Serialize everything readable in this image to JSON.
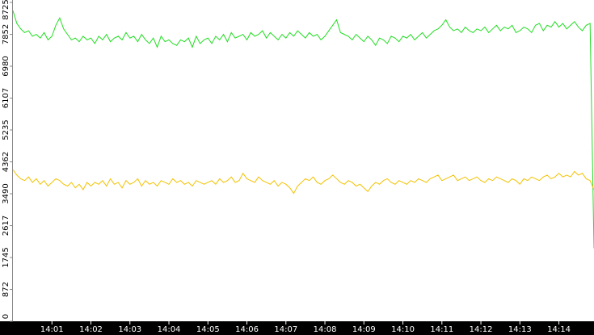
{
  "chart_data": {
    "type": "line",
    "categories": [
      null,
      null,
      null,
      null,
      null,
      null,
      null,
      null,
      null,
      null,
      "14:01",
      null,
      null,
      null,
      null,
      null,
      null,
      null,
      null,
      null,
      "14:02",
      null,
      null,
      null,
      null,
      null,
      null,
      null,
      null,
      null,
      "14:03",
      null,
      null,
      null,
      null,
      null,
      null,
      null,
      null,
      null,
      "14:04",
      null,
      null,
      null,
      null,
      null,
      null,
      null,
      null,
      null,
      "14:05",
      null,
      null,
      null,
      null,
      null,
      null,
      null,
      null,
      null,
      "14:06",
      null,
      null,
      null,
      null,
      null,
      null,
      null,
      null,
      null,
      "14:07",
      null,
      null,
      null,
      null,
      null,
      null,
      null,
      null,
      null,
      "14:08",
      null,
      null,
      null,
      null,
      null,
      null,
      null,
      null,
      null,
      "14:09",
      null,
      null,
      null,
      null,
      null,
      null,
      null,
      null,
      null,
      "14:10",
      null,
      null,
      null,
      null,
      null,
      null,
      null,
      null,
      null,
      "14:11",
      null,
      null,
      null,
      null,
      null,
      null,
      null,
      null,
      null,
      "14:12",
      null,
      null,
      null,
      null,
      null,
      null,
      null,
      null,
      null,
      "14:13",
      null,
      null,
      null,
      null,
      null,
      null,
      null,
      null,
      null,
      "14:14",
      null,
      null,
      null,
      null,
      null,
      null,
      null,
      null,
      null
    ],
    "series": [
      {
        "color": "#22dd22",
        "values": [
          8500,
          8150,
          8000,
          7900,
          7950,
          7800,
          7850,
          7750,
          7900,
          7700,
          7800,
          8100,
          8300,
          8000,
          7850,
          7700,
          7750,
          7650,
          7800,
          7700,
          7750,
          7600,
          7800,
          7700,
          7850,
          7650,
          7750,
          7800,
          7700,
          7900,
          7750,
          7800,
          7650,
          7850,
          7700,
          7600,
          7750,
          7500,
          7800,
          7650,
          7700,
          7600,
          7550,
          7700,
          7650,
          7750,
          7500,
          7800,
          7600,
          7700,
          7750,
          7600,
          7800,
          7700,
          7850,
          7650,
          7900,
          7750,
          7800,
          7850,
          7700,
          7900,
          7800,
          7850,
          7950,
          7750,
          7900,
          7800,
          7700,
          7850,
          7750,
          7900,
          7800,
          7950,
          7850,
          7750,
          7900,
          7800,
          7850,
          7700,
          7800,
          7950,
          8100,
          8250,
          7900,
          7850,
          7800,
          7700,
          7850,
          7750,
          7650,
          7800,
          7700,
          7550,
          7750,
          7700,
          7600,
          7800,
          7750,
          7650,
          7800,
          7750,
          7850,
          7700,
          7800,
          7900,
          7750,
          7850,
          7950,
          8000,
          8100,
          8250,
          8050,
          7950,
          8000,
          7900,
          8050,
          7950,
          7900,
          8000,
          7950,
          8050,
          7900,
          8000,
          8100,
          7950,
          8050,
          8000,
          8100,
          7900,
          7950,
          8050,
          8000,
          7900,
          8100,
          8150,
          7950,
          8100,
          8050,
          8200,
          8050,
          8150,
          8000,
          8100,
          8200,
          8050,
          7950,
          8100,
          8150,
          2000
        ]
      },
      {
        "color": "#f2c200",
        "values": [
          4150,
          4000,
          3900,
          3850,
          3950,
          3800,
          3900,
          3750,
          3850,
          3700,
          3800,
          3900,
          3850,
          3750,
          3700,
          3800,
          3650,
          3750,
          3600,
          3800,
          3700,
          3800,
          3750,
          3850,
          3700,
          3900,
          3750,
          3800,
          3650,
          3850,
          3750,
          3800,
          3900,
          3700,
          3850,
          3750,
          3800,
          3700,
          3850,
          3800,
          3750,
          3900,
          3800,
          3850,
          3750,
          3800,
          3700,
          3850,
          3800,
          3750,
          3800,
          3850,
          3750,
          3900,
          3800,
          3850,
          3950,
          3800,
          3850,
          4050,
          3900,
          3850,
          3800,
          3950,
          3850,
          3800,
          3750,
          3850,
          3700,
          3800,
          3750,
          3650,
          3500,
          3700,
          3800,
          3900,
          3850,
          3950,
          3800,
          3750,
          3850,
          3900,
          4000,
          3900,
          3800,
          3750,
          3850,
          3800,
          3700,
          3750,
          3650,
          3550,
          3700,
          3800,
          3750,
          3850,
          3900,
          3800,
          3750,
          3850,
          3800,
          3750,
          3850,
          3800,
          3900,
          3850,
          3800,
          3900,
          3950,
          4000,
          3850,
          3900,
          3950,
          4000,
          3850,
          3900,
          3950,
          3850,
          3900,
          3950,
          3850,
          3800,
          3900,
          3850,
          3950,
          3900,
          3850,
          3800,
          3900,
          3850,
          3750,
          3900,
          3850,
          3950,
          3900,
          3850,
          3950,
          4000,
          3900,
          3950,
          4050,
          3950,
          4000,
          3950,
          4100,
          4000,
          4050,
          3900,
          3850,
          3600
        ]
      }
    ],
    "ylim": [
      0,
      8725
    ],
    "yticks": [
      0,
      872,
      1745,
      2617,
      3490,
      4362,
      5235,
      6107,
      6980,
      7852,
      8725
    ]
  }
}
